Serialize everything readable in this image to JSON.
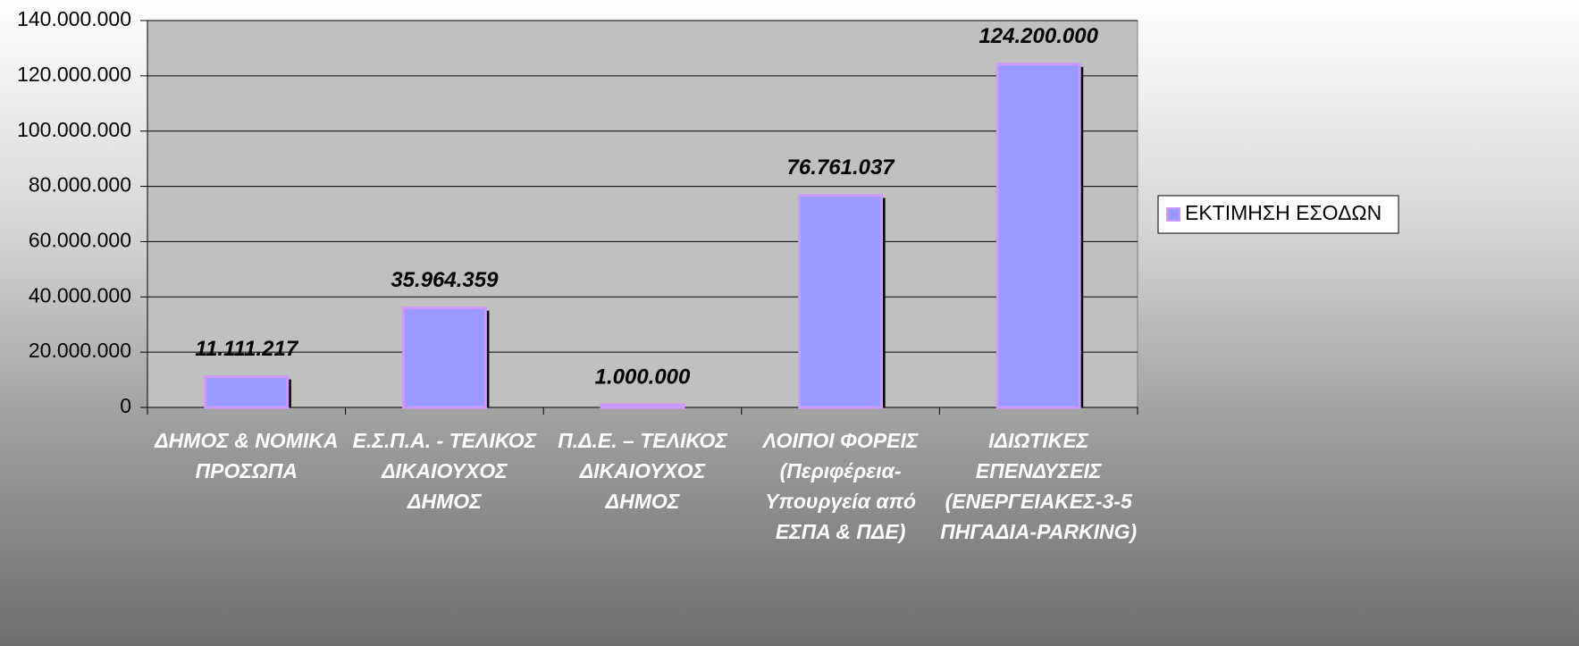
{
  "chart_data": {
    "type": "bar",
    "categories": [
      "ΔΗΜΟΣ & ΝΟΜΙΚΑ ΠΡΟΣΩΠΑ",
      "Ε.Σ.Π.Α. - ΤΕΛΙΚΟΣ ΔΙΚΑΙΟΥΧΟΣ ΔΗΜΟΣ",
      "Π.Δ.Ε. – ΤΕΛΙΚΟΣ ΔΙΚΑΙΟΥΧΟΣ ΔΗΜΟΣ",
      "ΛΟΙΠΟΙ ΦΟΡΕΙΣ (Περιφέρεια-Υπουργεία από ΕΣΠΑ & ΠΔΕ)",
      "ΙΔΙΩΤΙΚΕΣ ΕΠΕΝΔΥΣΕΙΣ (ΕΝΕΡΓΕΙΑΚΕΣ-3-5 ΠΗΓΑΔΙΑ-PARKING)"
    ],
    "series": [
      {
        "name": "ΕΚΤΙΜΗΣΗ ΕΣΟΔΩΝ",
        "color": "#9999ff",
        "values": [
          11111217,
          35964359,
          1000000,
          76761037,
          124200000
        ],
        "value_labels": [
          "11.111.217",
          "35.964.359",
          "1.000.000",
          "76.761.037",
          "124.200.000"
        ]
      }
    ],
    "ylim": [
      0,
      140000000
    ],
    "yticks": [
      0,
      {
        "value": 20000000,
        "label": "20.000.000"
      },
      {
        "value": 40000000,
        "label": "40.000.000"
      },
      {
        "value": 60000000,
        "label": "60.000.000"
      },
      {
        "value": 80000000,
        "label": "80.000.000"
      },
      {
        "value": 100000000,
        "label": "100.000.000"
      },
      {
        "value": 120000000,
        "label": "120.000.000"
      },
      {
        "value": 140000000,
        "label": "140.000.000"
      }
    ],
    "grid": true,
    "legend": "right"
  }
}
